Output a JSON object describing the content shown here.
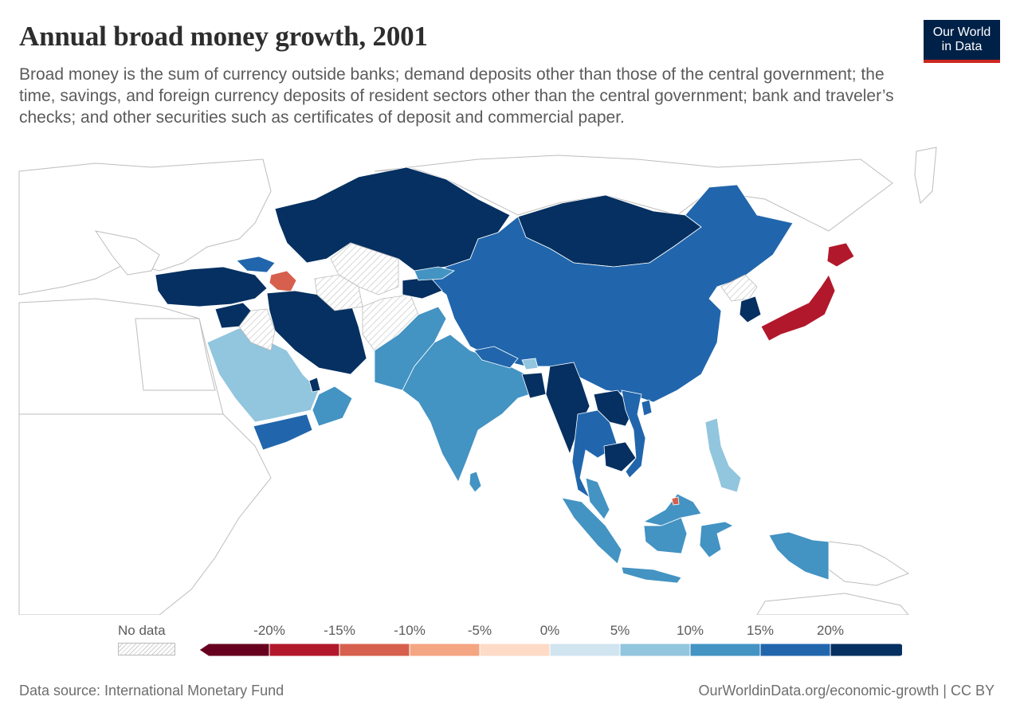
{
  "header": {
    "title": "Annual broad money growth, 2001",
    "subtitle": "Broad money is the sum of currency outside banks; demand deposits other than those of the central government; the time, savings, and foreign currency deposits of resident sectors other than the central government; bank and traveler’s checks; and other securities such as certificates of deposit and commercial paper."
  },
  "logo": {
    "line1": "Our World",
    "line2": "in Data",
    "background": "#002147",
    "accent": "#ce261e"
  },
  "legend": {
    "no_data_label": "No data",
    "ticks": [
      "-20%",
      "-15%",
      "-10%",
      "-5%",
      "0%",
      "5%",
      "10%",
      "15%",
      "20%"
    ],
    "bins": [
      {
        "from": null,
        "to": -20,
        "color": "#67001f"
      },
      {
        "from": -20,
        "to": -15,
        "color": "#b2182b"
      },
      {
        "from": -15,
        "to": -10,
        "color": "#d6604d"
      },
      {
        "from": -10,
        "to": -5,
        "color": "#f4a582"
      },
      {
        "from": -5,
        "to": 0,
        "color": "#fddbc7"
      },
      {
        "from": 0,
        "to": 5,
        "color": "#d1e5f0"
      },
      {
        "from": 5,
        "to": 10,
        "color": "#92c5de"
      },
      {
        "from": 10,
        "to": 15,
        "color": "#4393c3"
      },
      {
        "from": 15,
        "to": 20,
        "color": "#2166ac"
      },
      {
        "from": 20,
        "to": null,
        "color": "#053061"
      }
    ]
  },
  "footer": {
    "source": "Data source: International Monetary Fund",
    "credit": "OurWorldinData.org/economic-growth | CC BY"
  },
  "map_data": {
    "year": 2001,
    "regions": [
      {
        "name": "Kazakhstan",
        "bin": "above 20%"
      },
      {
        "name": "Mongolia",
        "bin": "above 20%"
      },
      {
        "name": "Turkey",
        "bin": "above 20%"
      },
      {
        "name": "Iran",
        "bin": "above 20%"
      },
      {
        "name": "Syria",
        "bin": "above 20%"
      },
      {
        "name": "Kyrgyzstan",
        "bin": "above 20%"
      },
      {
        "name": "Tajikistan",
        "bin": "above 20%"
      },
      {
        "name": "Myanmar",
        "bin": "above 20%"
      },
      {
        "name": "Laos",
        "bin": "above 20%"
      },
      {
        "name": "Cambodia",
        "bin": "above 20%"
      },
      {
        "name": "South Korea",
        "bin": "above 20%"
      },
      {
        "name": "Qatar",
        "bin": "above 20%"
      },
      {
        "name": "China",
        "bin": "15% to 20%"
      },
      {
        "name": "Vietnam",
        "bin": "15% to 20%"
      },
      {
        "name": "Thailand",
        "bin": "15% to 20%"
      },
      {
        "name": "Yemen",
        "bin": "15% to 20%"
      },
      {
        "name": "Georgia",
        "bin": "15% to 20%"
      },
      {
        "name": "Nepal",
        "bin": "15% to 20%"
      },
      {
        "name": "India",
        "bin": "10% to 15%"
      },
      {
        "name": "Pakistan",
        "bin": "10% to 15%"
      },
      {
        "name": "Indonesia",
        "bin": "10% to 15%"
      },
      {
        "name": "Malaysia",
        "bin": "10% to 15%"
      },
      {
        "name": "Oman",
        "bin": "10% to 15%"
      },
      {
        "name": "Sri Lanka",
        "bin": "10% to 15%"
      },
      {
        "name": "Saudi Arabia",
        "bin": "5% to 10%"
      },
      {
        "name": "Philippines",
        "bin": "5% to 10%"
      },
      {
        "name": "Bhutan",
        "bin": "5% to 10%"
      },
      {
        "name": "Japan",
        "bin": "-20% to -15%"
      },
      {
        "name": "Azerbaijan",
        "bin": "-15% to -10%"
      },
      {
        "name": "Brunei",
        "bin": "-15% to -10%"
      },
      {
        "name": "Uzbekistan",
        "bin": "No data"
      },
      {
        "name": "Turkmenistan",
        "bin": "No data"
      },
      {
        "name": "Afghanistan",
        "bin": "No data"
      },
      {
        "name": "Iraq",
        "bin": "No data"
      },
      {
        "name": "North Korea",
        "bin": "No data"
      }
    ]
  }
}
